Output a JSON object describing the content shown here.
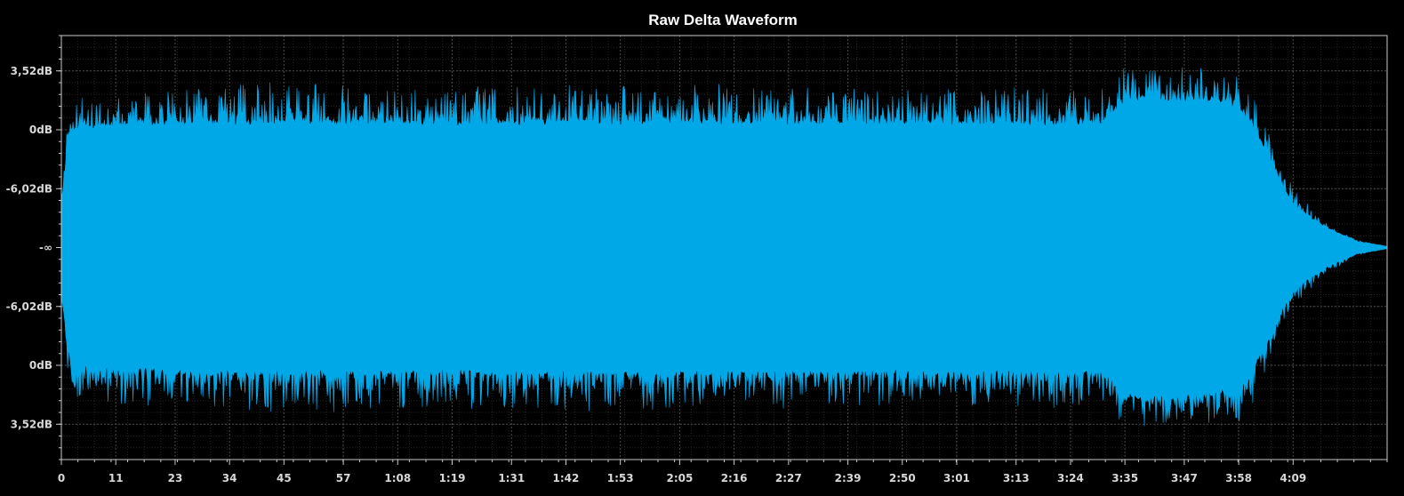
{
  "chart_data": {
    "type": "area",
    "title": "Raw Delta Waveform",
    "xlabel": "",
    "ylabel": "",
    "grid": true,
    "legend": "none",
    "x_unit": "seconds",
    "x_range": [
      0,
      268
    ],
    "x_tick_labels": [
      {
        "value": 0,
        "label": "0"
      },
      {
        "value": 11,
        "label": "11"
      },
      {
        "value": 23,
        "label": "23"
      },
      {
        "value": 34,
        "label": "34"
      },
      {
        "value": 45,
        "label": "45"
      },
      {
        "value": 57,
        "label": "57"
      },
      {
        "value": 68,
        "label": "1:08"
      },
      {
        "value": 79,
        "label": "1:19"
      },
      {
        "value": 91,
        "label": "1:31"
      },
      {
        "value": 102,
        "label": "1:42"
      },
      {
        "value": 113,
        "label": "1:53"
      },
      {
        "value": 125,
        "label": "2:05"
      },
      {
        "value": 136,
        "label": "2:16"
      },
      {
        "value": 147,
        "label": "2:27"
      },
      {
        "value": 159,
        "label": "2:39"
      },
      {
        "value": 170,
        "label": "2:50"
      },
      {
        "value": 181,
        "label": "3:01"
      },
      {
        "value": 193,
        "label": "3:13"
      },
      {
        "value": 204,
        "label": "3:24"
      },
      {
        "value": 215,
        "label": "3:35"
      },
      {
        "value": 227,
        "label": "3:47"
      },
      {
        "value": 238,
        "label": "3:58"
      },
      {
        "value": 249,
        "label": "4:09"
      }
    ],
    "y_unit": "linear amplitude",
    "y_range": [
      -1.8,
      1.8
    ],
    "y_tick_labels": [
      {
        "value": 1.5,
        "label": "3,52dB"
      },
      {
        "value": 1.0,
        "label": "0dB"
      },
      {
        "value": 0.5,
        "label": "-6,02dB"
      },
      {
        "value": 0.0,
        "label": "-∞"
      },
      {
        "value": -0.5,
        "label": "-6,02dB"
      },
      {
        "value": -1.0,
        "label": "0dB"
      },
      {
        "value": -1.5,
        "label": "3,52dB"
      }
    ],
    "envelope": {
      "description": "approximate peak amplitude over time (symmetric)",
      "time": [
        0,
        1,
        2,
        10,
        20,
        30,
        45,
        60,
        80,
        100,
        120,
        140,
        160,
        180,
        200,
        210,
        213,
        215,
        220,
        230,
        238,
        241,
        244,
        247,
        250,
        256,
        262,
        268
      ],
      "peak": [
        0.45,
        0.9,
        1.2,
        1.26,
        1.26,
        1.27,
        1.32,
        1.28,
        1.28,
        1.3,
        1.3,
        1.3,
        1.28,
        1.27,
        1.27,
        1.26,
        1.35,
        1.45,
        1.46,
        1.44,
        1.4,
        1.22,
        0.95,
        0.62,
        0.42,
        0.2,
        0.06,
        0.01
      ],
      "body": [
        0.35,
        0.75,
        1.0,
        1.04,
        1.04,
        1.05,
        1.06,
        1.05,
        1.05,
        1.06,
        1.06,
        1.06,
        1.05,
        1.05,
        1.05,
        1.05,
        1.15,
        1.25,
        1.27,
        1.25,
        1.2,
        1.0,
        0.78,
        0.5,
        0.32,
        0.16,
        0.05,
        0.01
      ]
    },
    "series": [
      {
        "color": "#00a8e8"
      }
    ],
    "colors": {
      "background": "#000000",
      "waveform": "#00a8e8",
      "grid_major": "#4a4a4a",
      "grid_minor": "#262626",
      "axis": "#c8c8c8",
      "text": "#ffffff",
      "tick_text": "#d8d8d8"
    }
  }
}
